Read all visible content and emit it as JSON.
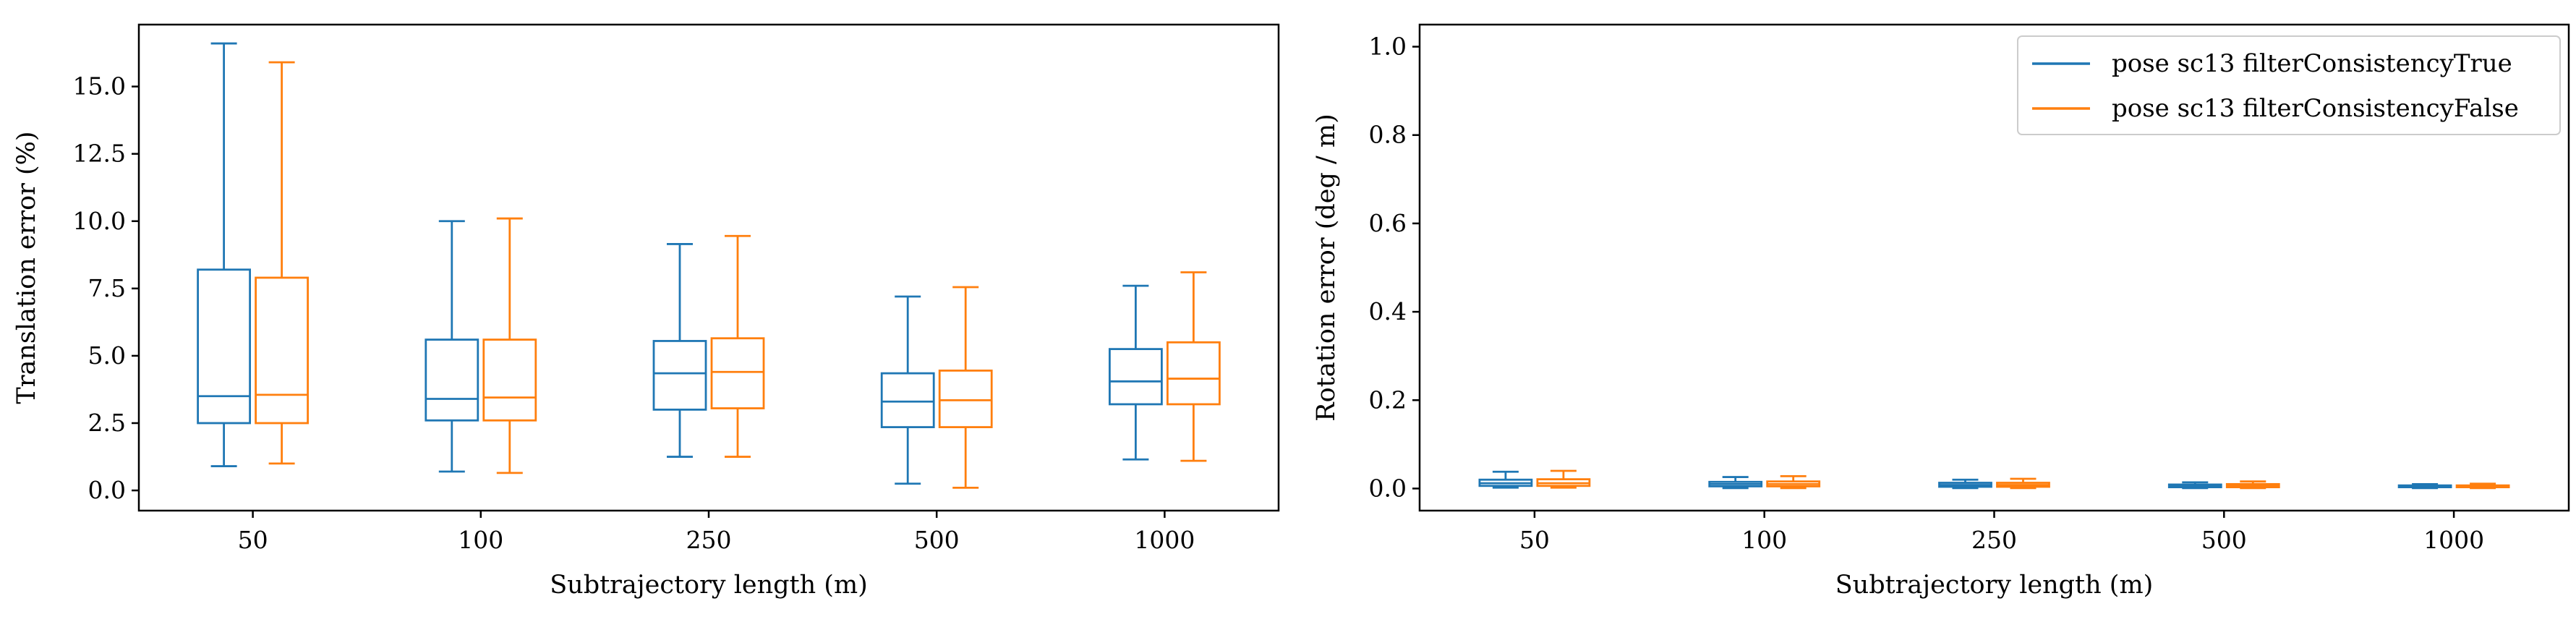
{
  "colors": {
    "series_true": "#1f77b4",
    "series_false": "#ff7f0e",
    "axes": "#000000"
  },
  "chart_data": [
    {
      "type": "box",
      "xlabel": "Subtrajectory length (m)",
      "ylabel": "Translation error (%)",
      "categories": [
        "50",
        "100",
        "250",
        "500",
        "1000"
      ],
      "ylim": [
        -0.75,
        17.3
      ],
      "yticks": [
        0.0,
        2.5,
        5.0,
        7.5,
        10.0,
        12.5,
        15.0
      ],
      "ytick_labels": [
        "0.0",
        "2.5",
        "5.0",
        "7.5",
        "10.0",
        "12.5",
        "15.0"
      ],
      "grid": false,
      "legend": false,
      "series": [
        {
          "name": "pose sc13 filterConsistencyTrue",
          "color_key": "series_true",
          "boxes": [
            {
              "whislo": 0.9,
              "q1": 2.5,
              "med": 3.5,
              "q3": 8.2,
              "whishi": 16.6
            },
            {
              "whislo": 0.7,
              "q1": 2.6,
              "med": 3.4,
              "q3": 5.6,
              "whishi": 10.0
            },
            {
              "whislo": 1.25,
              "q1": 3.0,
              "med": 4.35,
              "q3": 5.55,
              "whishi": 9.15
            },
            {
              "whislo": 0.25,
              "q1": 2.35,
              "med": 3.3,
              "q3": 4.35,
              "whishi": 7.2
            },
            {
              "whislo": 1.15,
              "q1": 3.2,
              "med": 4.05,
              "q3": 5.25,
              "whishi": 7.6
            }
          ]
        },
        {
          "name": "pose sc13 filterConsistencyFalse",
          "color_key": "series_false",
          "boxes": [
            {
              "whislo": 1.0,
              "q1": 2.5,
              "med": 3.55,
              "q3": 7.9,
              "whishi": 15.9
            },
            {
              "whislo": 0.65,
              "q1": 2.6,
              "med": 3.45,
              "q3": 5.6,
              "whishi": 10.1
            },
            {
              "whislo": 1.25,
              "q1": 3.05,
              "med": 4.4,
              "q3": 5.65,
              "whishi": 9.45
            },
            {
              "whislo": 0.1,
              "q1": 2.35,
              "med": 3.35,
              "q3": 4.45,
              "whishi": 7.55
            },
            {
              "whislo": 1.1,
              "q1": 3.2,
              "med": 4.15,
              "q3": 5.5,
              "whishi": 8.1
            }
          ]
        }
      ]
    },
    {
      "type": "box",
      "xlabel": "Subtrajectory length (m)",
      "ylabel": "Rotation error (deg / m)",
      "categories": [
        "50",
        "100",
        "250",
        "500",
        "1000"
      ],
      "ylim": [
        -0.05,
        1.05
      ],
      "yticks": [
        0.0,
        0.2,
        0.4,
        0.6,
        0.8,
        1.0
      ],
      "ytick_labels": [
        "0.0",
        "0.2",
        "0.4",
        "0.6",
        "0.8",
        "1.0"
      ],
      "grid": false,
      "legend": "top-right",
      "series": [
        {
          "name": "pose sc13 filterConsistencyTrue",
          "color_key": "series_true",
          "boxes": [
            {
              "whislo": 0.002,
              "q1": 0.006,
              "med": 0.012,
              "q3": 0.02,
              "whishi": 0.038
            },
            {
              "whislo": 0.001,
              "q1": 0.005,
              "med": 0.01,
              "q3": 0.015,
              "whishi": 0.026
            },
            {
              "whislo": 0.001,
              "q1": 0.004,
              "med": 0.008,
              "q3": 0.013,
              "whishi": 0.02
            },
            {
              "whislo": 0.001,
              "q1": 0.003,
              "med": 0.006,
              "q3": 0.009,
              "whishi": 0.014
            },
            {
              "whislo": 0.001,
              "q1": 0.003,
              "med": 0.005,
              "q3": 0.007,
              "whishi": 0.01
            }
          ]
        },
        {
          "name": "pose sc13 filterConsistencyFalse",
          "color_key": "series_false",
          "boxes": [
            {
              "whislo": 0.002,
              "q1": 0.006,
              "med": 0.012,
              "q3": 0.021,
              "whishi": 0.04
            },
            {
              "whislo": 0.001,
              "q1": 0.005,
              "med": 0.01,
              "q3": 0.016,
              "whishi": 0.028
            },
            {
              "whislo": 0.001,
              "q1": 0.004,
              "med": 0.008,
              "q3": 0.013,
              "whishi": 0.022
            },
            {
              "whislo": 0.001,
              "q1": 0.003,
              "med": 0.006,
              "q3": 0.01,
              "whishi": 0.016
            },
            {
              "whislo": 0.001,
              "q1": 0.003,
              "med": 0.005,
              "q3": 0.007,
              "whishi": 0.011
            }
          ]
        }
      ]
    }
  ]
}
